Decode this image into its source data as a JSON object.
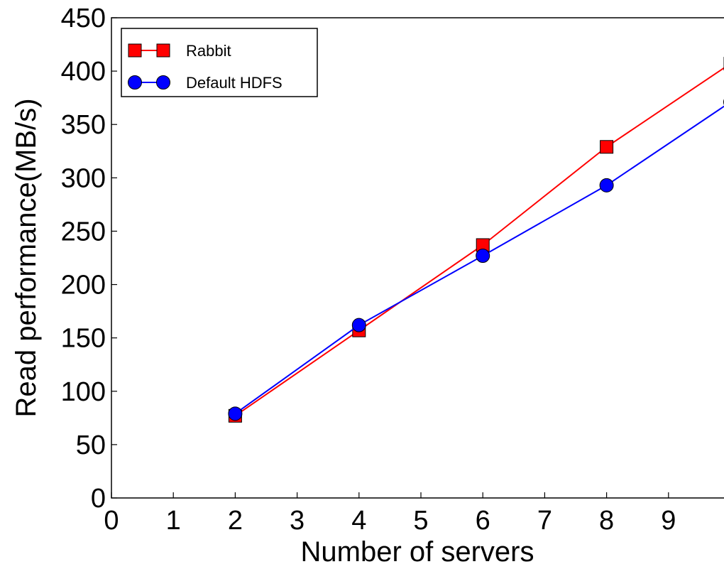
{
  "chart_data": {
    "type": "line",
    "title": "",
    "xlabel": "Number of servers",
    "ylabel": "Read performance(MB/s)",
    "xlim": [
      0,
      10
    ],
    "ylim": [
      0,
      450
    ],
    "xticks": [
      "0",
      "1",
      "2",
      "3",
      "4",
      "5",
      "6",
      "7",
      "8",
      "9"
    ],
    "yticks": [
      "0",
      "50",
      "100",
      "150",
      "200",
      "250",
      "300",
      "350",
      "400",
      "450"
    ],
    "grid": false,
    "legend_position": "top-left",
    "x": [
      2,
      4,
      6,
      8,
      10
    ],
    "series": [
      {
        "name": "Rabbit",
        "values": [
          77,
          157,
          237,
          329,
          407
        ],
        "color": "#ff0000",
        "marker": "square"
      },
      {
        "name": "Default HDFS",
        "values": [
          79,
          162,
          227,
          293,
          371
        ],
        "color": "#0000ff",
        "marker": "circle"
      }
    ]
  }
}
